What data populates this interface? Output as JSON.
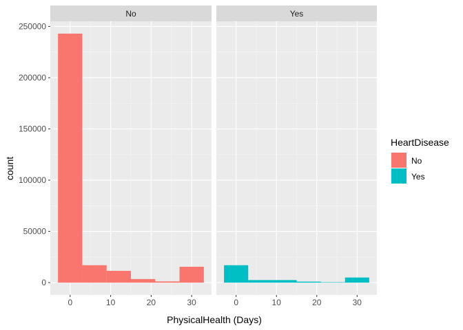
{
  "chart_data": {
    "type": "bar",
    "subtype": "faceted-histogram",
    "xlabel": "PhysicalHealth (Days)",
    "ylabel": "count",
    "xlim": [
      -4.9,
      34.9
    ],
    "ylim": [
      -12000,
      255000
    ],
    "x_ticks": [
      0,
      10,
      20,
      30
    ],
    "y_ticks": [
      0,
      50000,
      100000,
      150000,
      200000,
      250000
    ],
    "y_tick_labels": [
      "0",
      "50000",
      "100000",
      "150000",
      "200000",
      "250000"
    ],
    "x_tick_labels": [
      "0",
      "10",
      "20",
      "30"
    ],
    "grid": true,
    "legend": {
      "title": "HeartDisease",
      "position": "right",
      "entries": [
        {
          "label": "No",
          "color": "#F8766D"
        },
        {
          "label": "Yes",
          "color": "#00BFC4"
        }
      ]
    },
    "bin_edges": [
      -3,
      3,
      9,
      15,
      21,
      27,
      33
    ],
    "facets": [
      {
        "label": "No",
        "series": "No",
        "color": "#F8766D",
        "counts": [
          243000,
          17000,
          11500,
          3500,
          1200,
          15500
        ]
      },
      {
        "label": "Yes",
        "series": "Yes",
        "color": "#00BFC4",
        "counts": [
          17000,
          2500,
          2500,
          1000,
          400,
          5000
        ]
      }
    ]
  }
}
